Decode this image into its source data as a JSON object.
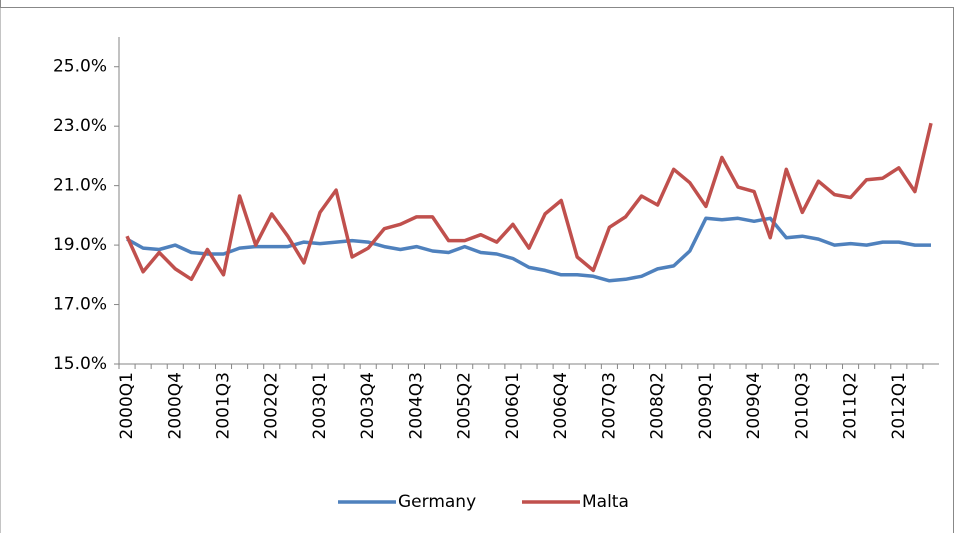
{
  "chart_data": {
    "type": "line",
    "categories": [
      "2000Q1",
      null,
      null,
      "2000Q4",
      null,
      null,
      "2001Q3",
      null,
      null,
      "2002Q2",
      null,
      null,
      "2003Q1",
      null,
      null,
      "2003Q4",
      null,
      null,
      "2004Q3",
      null,
      null,
      "2005Q2",
      null,
      null,
      "2006Q1",
      null,
      null,
      "2006Q4",
      null,
      null,
      "2007Q3",
      null,
      null,
      "2008Q2",
      null,
      null,
      "2009Q1",
      null,
      null,
      "2009Q4",
      null,
      null,
      "2010Q3",
      null,
      null,
      "2011Q2",
      null,
      null,
      "2012Q1",
      null,
      null
    ],
    "series": [
      {
        "name": "Germany",
        "color": "#4f81bd",
        "values": [
          19.2,
          18.9,
          18.85,
          19.0,
          18.75,
          18.7,
          18.7,
          18.9,
          18.95,
          18.95,
          18.95,
          19.1,
          19.05,
          19.1,
          19.15,
          19.1,
          18.95,
          18.85,
          18.95,
          18.8,
          18.75,
          18.95,
          18.75,
          18.7,
          18.55,
          18.25,
          18.15,
          18.0,
          18.0,
          17.95,
          17.8,
          17.85,
          17.95,
          18.2,
          18.3,
          18.8,
          19.9,
          19.85,
          19.9,
          19.8,
          19.9,
          19.25,
          19.3,
          19.2,
          19.0,
          19.05,
          19.0,
          19.1,
          19.1,
          19.0,
          19.0
        ]
      },
      {
        "name": "Malta",
        "color": "#c0504d",
        "values": [
          19.3,
          18.1,
          18.75,
          18.2,
          17.85,
          18.85,
          18.0,
          20.65,
          19.0,
          20.05,
          19.3,
          18.4,
          20.1,
          20.85,
          18.6,
          18.9,
          19.55,
          19.7,
          19.95,
          19.95,
          19.15,
          19.15,
          19.35,
          19.1,
          19.7,
          18.9,
          20.05,
          20.5,
          18.6,
          18.15,
          19.6,
          19.95,
          20.65,
          20.35,
          21.55,
          21.1,
          20.3,
          21.95,
          20.95,
          20.8,
          19.25,
          21.55,
          20.1,
          21.15,
          20.7,
          20.6,
          21.2,
          21.25,
          21.6,
          20.8,
          23.1
        ]
      }
    ],
    "ylim": [
      15,
      26
    ],
    "yticks": [
      {
        "value": 15,
        "label": "15.0%"
      },
      {
        "value": 17,
        "label": "17.0%"
      },
      {
        "value": 19,
        "label": "19.0%"
      },
      {
        "value": 21,
        "label": "21.0%"
      },
      {
        "value": 23,
        "label": "23.0%"
      },
      {
        "value": 25,
        "label": "25.0%"
      }
    ],
    "grid": false,
    "legend": "bottom"
  }
}
